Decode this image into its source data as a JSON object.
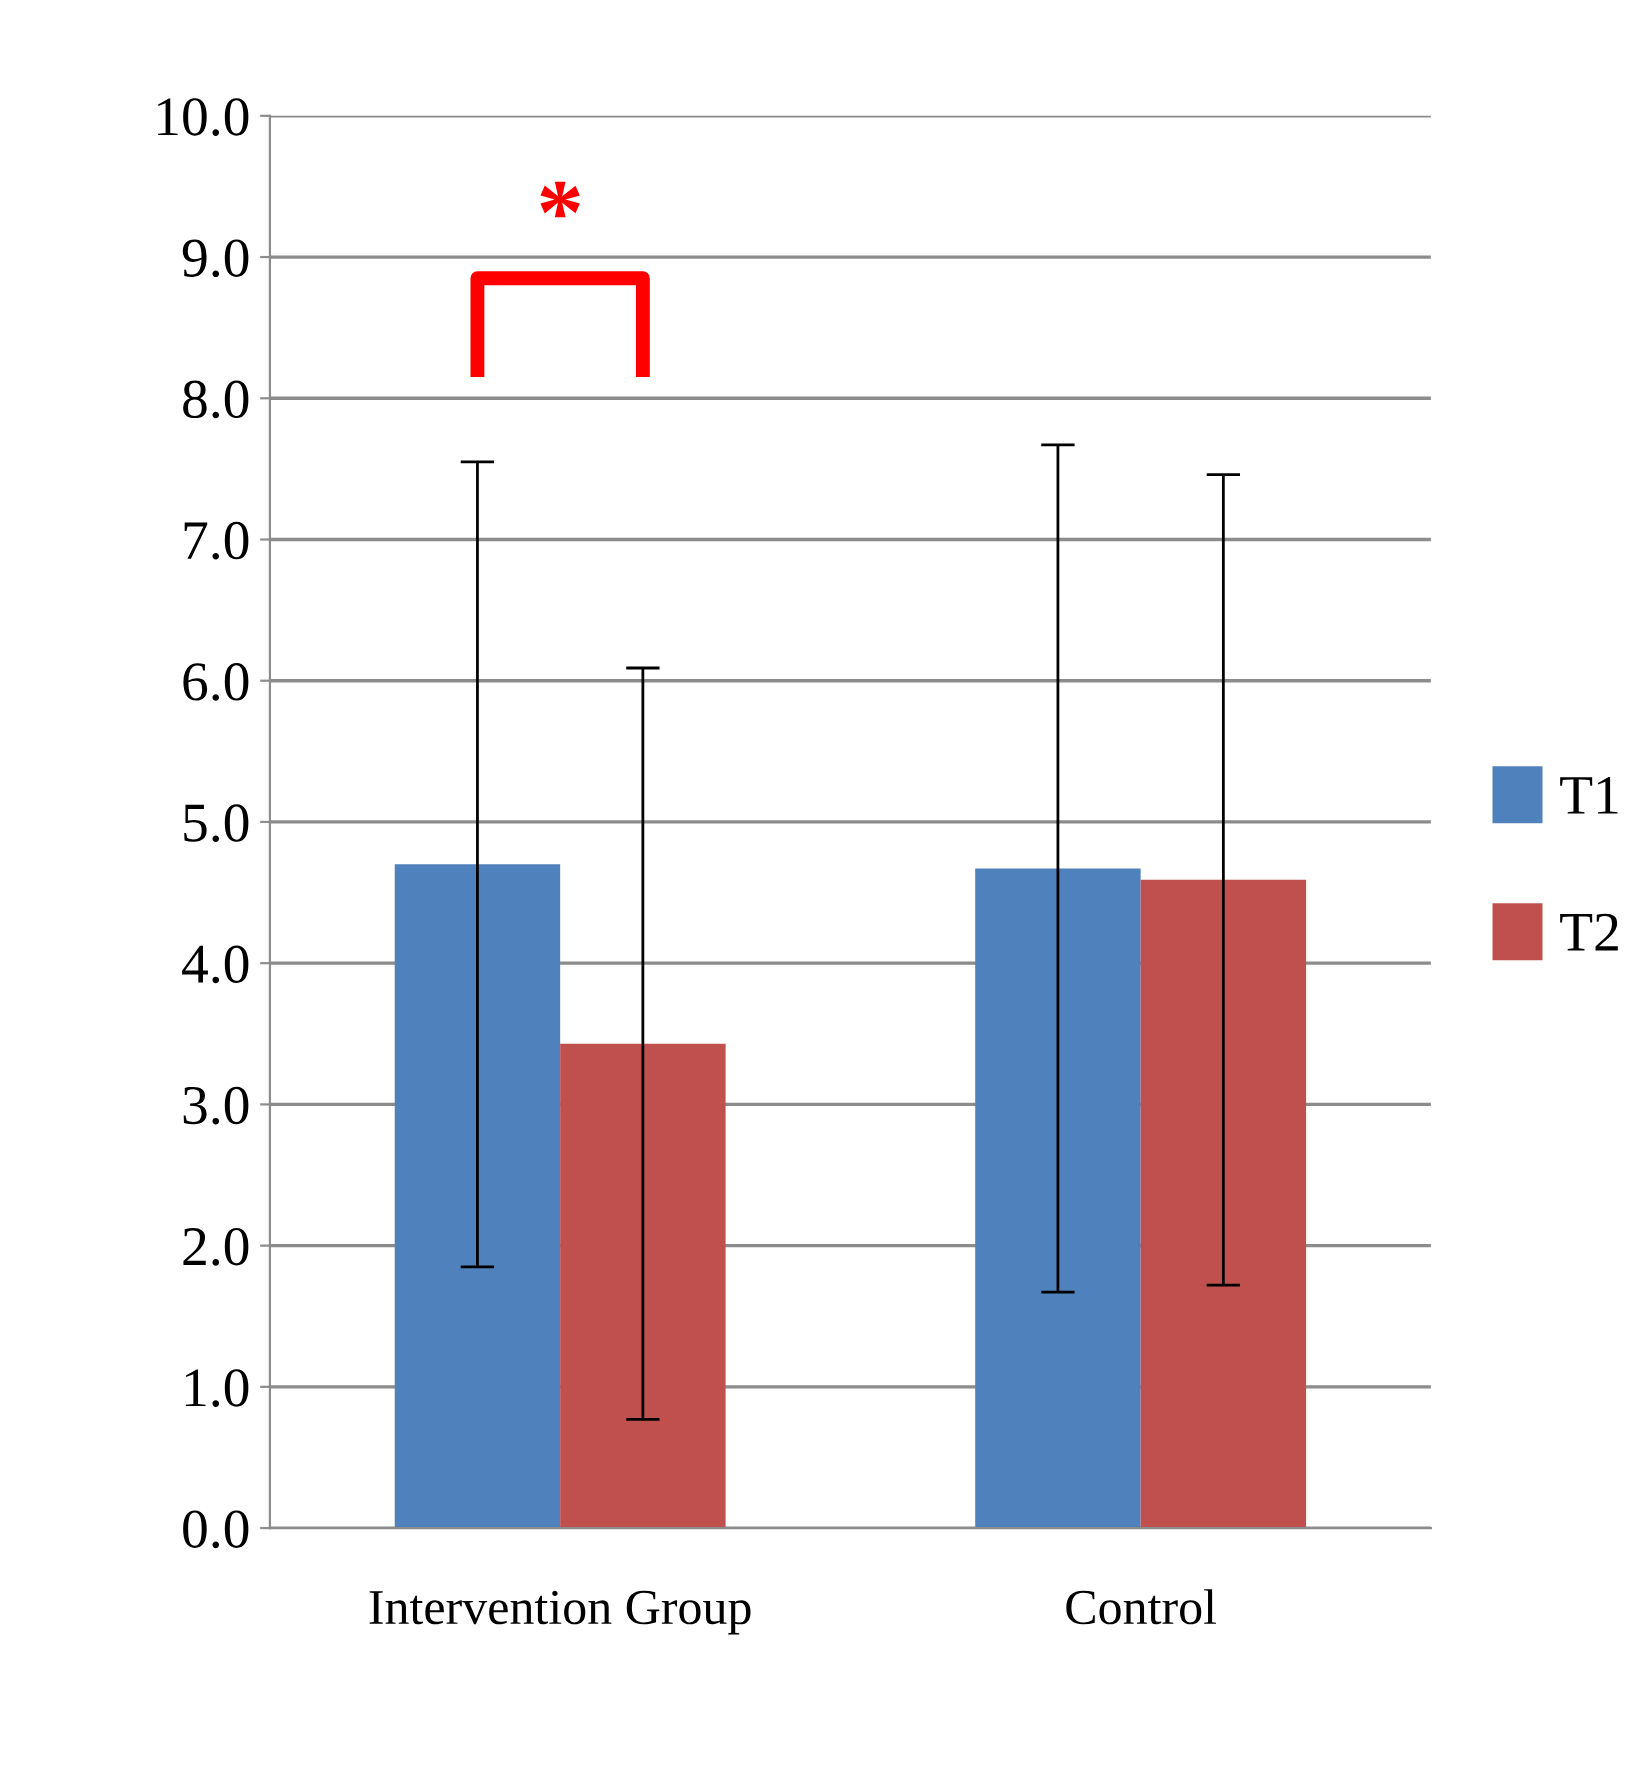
{
  "chart_data": {
    "type": "bar",
    "categories": [
      "Intervention Group",
      "Control"
    ],
    "series": [
      {
        "name": "T1",
        "color": "#4f81bd",
        "values": [
          4.7,
          4.67
        ],
        "errors": [
          2.85,
          3.0
        ]
      },
      {
        "name": "T2",
        "color": "#c0504d",
        "values": [
          3.43,
          4.59
        ],
        "errors": [
          2.66,
          2.87
        ]
      }
    ],
    "ylim": [
      0,
      10
    ],
    "yticks": [
      {
        "value": 0,
        "label": "0.0"
      },
      {
        "value": 1,
        "label": "1.0"
      },
      {
        "value": 2,
        "label": "2.0"
      },
      {
        "value": 3,
        "label": "3.0"
      },
      {
        "value": 4,
        "label": "4.0"
      },
      {
        "value": 5,
        "label": "5.0"
      },
      {
        "value": 6,
        "label": "6.0"
      },
      {
        "value": 7,
        "label": "7.0"
      },
      {
        "value": 8,
        "label": "8.0"
      },
      {
        "value": 9,
        "label": "9.0"
      },
      {
        "value": 10,
        "label": "10.0"
      }
    ],
    "grid": "y",
    "legend": "right",
    "annotations": [
      "*"
    ]
  }
}
